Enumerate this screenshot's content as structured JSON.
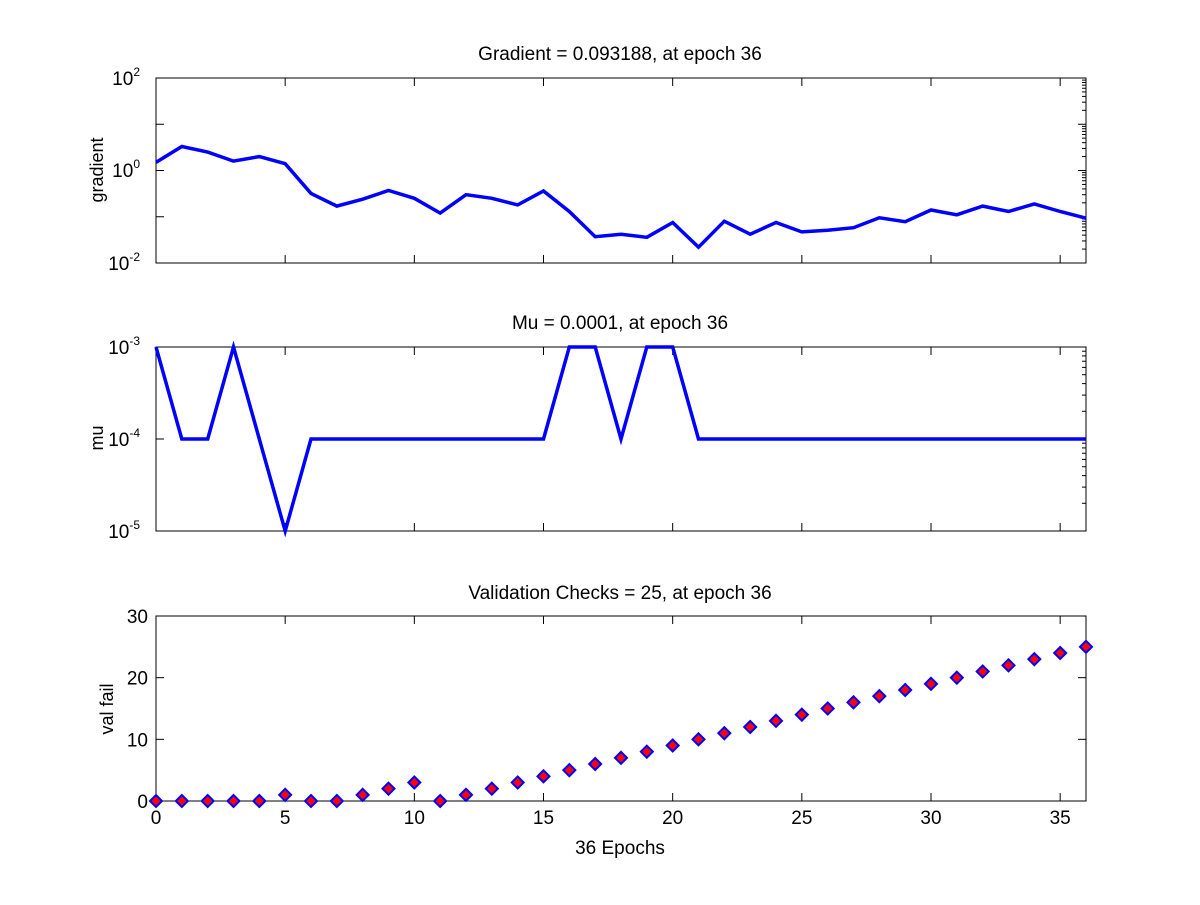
{
  "chart_data": [
    {
      "type": "line",
      "title": "Gradient = 0.093188, at epoch 36",
      "ylabel": "gradient",
      "xlabel": "",
      "yscale": "log",
      "xlim": [
        0,
        36
      ],
      "ylim": [
        0.01,
        100
      ],
      "yticks": [
        {
          "base": "10",
          "exp": "-2"
        },
        {
          "base": "10",
          "exp": "0"
        },
        {
          "base": "10",
          "exp": "2"
        }
      ],
      "line_color": "#0000ff",
      "x": [
        0,
        1,
        2,
        3,
        4,
        5,
        6,
        7,
        8,
        9,
        10,
        11,
        12,
        13,
        14,
        15,
        16,
        17,
        18,
        19,
        20,
        21,
        22,
        23,
        24,
        25,
        26,
        27,
        28,
        29,
        30,
        31,
        32,
        33,
        34,
        35,
        36
      ],
      "values": [
        1.5,
        3.3,
        2.5,
        1.6,
        2.0,
        1.4,
        0.32,
        0.17,
        0.24,
        0.37,
        0.25,
        0.12,
        0.3,
        0.25,
        0.18,
        0.36,
        0.13,
        0.037,
        0.042,
        0.036,
        0.075,
        0.022,
        0.08,
        0.042,
        0.075,
        0.047,
        0.051,
        0.058,
        0.095,
        0.078,
        0.14,
        0.11,
        0.17,
        0.13,
        0.19,
        0.13,
        0.093
      ]
    },
    {
      "type": "line",
      "title": "Mu = 0.0001, at epoch 36",
      "ylabel": "mu",
      "xlabel": "",
      "yscale": "log",
      "xlim": [
        0,
        36
      ],
      "ylim": [
        1e-05,
        0.001
      ],
      "yticks": [
        {
          "base": "10",
          "exp": "-5"
        },
        {
          "base": "10",
          "exp": "-4"
        },
        {
          "base": "10",
          "exp": "-3"
        }
      ],
      "line_color": "#0000ff",
      "x": [
        0,
        1,
        2,
        3,
        4,
        5,
        6,
        7,
        8,
        9,
        10,
        11,
        12,
        13,
        14,
        15,
        16,
        17,
        18,
        19,
        20,
        21,
        22,
        23,
        24,
        25,
        26,
        27,
        28,
        29,
        30,
        31,
        32,
        33,
        34,
        35,
        36
      ],
      "values": [
        0.001,
        0.0001,
        0.0001,
        0.001,
        0.0001,
        1e-05,
        0.0001,
        0.0001,
        0.0001,
        0.0001,
        0.0001,
        0.0001,
        0.0001,
        0.0001,
        0.0001,
        0.0001,
        0.001,
        0.001,
        0.0001,
        0.001,
        0.001,
        0.0001,
        0.0001,
        0.0001,
        0.0001,
        0.0001,
        0.0001,
        0.0001,
        0.0001,
        0.0001,
        0.0001,
        0.0001,
        0.0001,
        0.0001,
        0.0001,
        0.0001,
        0.0001
      ]
    },
    {
      "type": "scatter",
      "title": "Validation Checks = 25, at epoch 36",
      "ylabel": "val fail",
      "xlabel": "36 Epochs",
      "xlim": [
        0,
        36
      ],
      "ylim": [
        0,
        30
      ],
      "xticks": [
        "0",
        "5",
        "10",
        "15",
        "20",
        "25",
        "30",
        "35"
      ],
      "yticks": [
        "0",
        "10",
        "20",
        "30"
      ],
      "marker": "diamond",
      "marker_fill": "#ff0000",
      "marker_edge": "#0000ff",
      "x": [
        0,
        1,
        2,
        3,
        4,
        5,
        6,
        7,
        8,
        9,
        10,
        11,
        12,
        13,
        14,
        15,
        16,
        17,
        18,
        19,
        20,
        21,
        22,
        23,
        24,
        25,
        26,
        27,
        28,
        29,
        30,
        31,
        32,
        33,
        34,
        35,
        36
      ],
      "values": [
        0,
        0,
        0,
        0,
        0,
        1,
        0,
        0,
        1,
        2,
        3,
        0,
        1,
        2,
        3,
        4,
        5,
        6,
        7,
        8,
        9,
        10,
        11,
        12,
        13,
        14,
        15,
        16,
        17,
        18,
        19,
        20,
        21,
        22,
        23,
        24,
        25
      ]
    }
  ]
}
